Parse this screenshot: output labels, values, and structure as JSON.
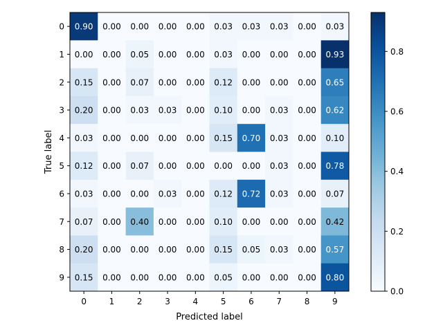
{
  "chart_data": {
    "type": "heatmap",
    "xlabel": "Predicted label",
    "ylabel": "True label",
    "x_categories": [
      "0",
      "1",
      "2",
      "3",
      "4",
      "5",
      "6",
      "7",
      "8",
      "9"
    ],
    "y_categories": [
      "0",
      "1",
      "2",
      "3",
      "4",
      "5",
      "6",
      "7",
      "8",
      "9"
    ],
    "values": [
      [
        0.9,
        0.0,
        0.0,
        0.0,
        0.0,
        0.03,
        0.03,
        0.03,
        0.0,
        0.03
      ],
      [
        0.0,
        0.0,
        0.05,
        0.0,
        0.0,
        0.03,
        0.0,
        0.0,
        0.0,
        0.93
      ],
      [
        0.15,
        0.0,
        0.07,
        0.0,
        0.0,
        0.12,
        0.0,
        0.0,
        0.0,
        0.65
      ],
      [
        0.2,
        0.0,
        0.03,
        0.03,
        0.0,
        0.1,
        0.0,
        0.03,
        0.0,
        0.62
      ],
      [
        0.03,
        0.0,
        0.0,
        0.0,
        0.0,
        0.15,
        0.7,
        0.03,
        0.0,
        0.1
      ],
      [
        0.12,
        0.0,
        0.07,
        0.0,
        0.0,
        0.0,
        0.0,
        0.03,
        0.0,
        0.78
      ],
      [
        0.03,
        0.0,
        0.0,
        0.03,
        0.0,
        0.12,
        0.72,
        0.03,
        0.0,
        0.07
      ],
      [
        0.07,
        0.0,
        0.4,
        0.0,
        0.0,
        0.1,
        0.0,
        0.0,
        0.0,
        0.42
      ],
      [
        0.2,
        0.0,
        0.0,
        0.0,
        0.0,
        0.15,
        0.05,
        0.03,
        0.0,
        0.57
      ],
      [
        0.15,
        0.0,
        0.0,
        0.0,
        0.0,
        0.05,
        0.0,
        0.0,
        0.0,
        0.8
      ]
    ],
    "colormap": "Blues",
    "vmin": 0.0,
    "vmax": 0.93,
    "colorbar_ticks": [
      "0.0",
      "0.2",
      "0.4",
      "0.6",
      "0.8"
    ],
    "colorbar_tick_values": [
      0.0,
      0.2,
      0.4,
      0.6,
      0.8
    ],
    "grid": false
  }
}
